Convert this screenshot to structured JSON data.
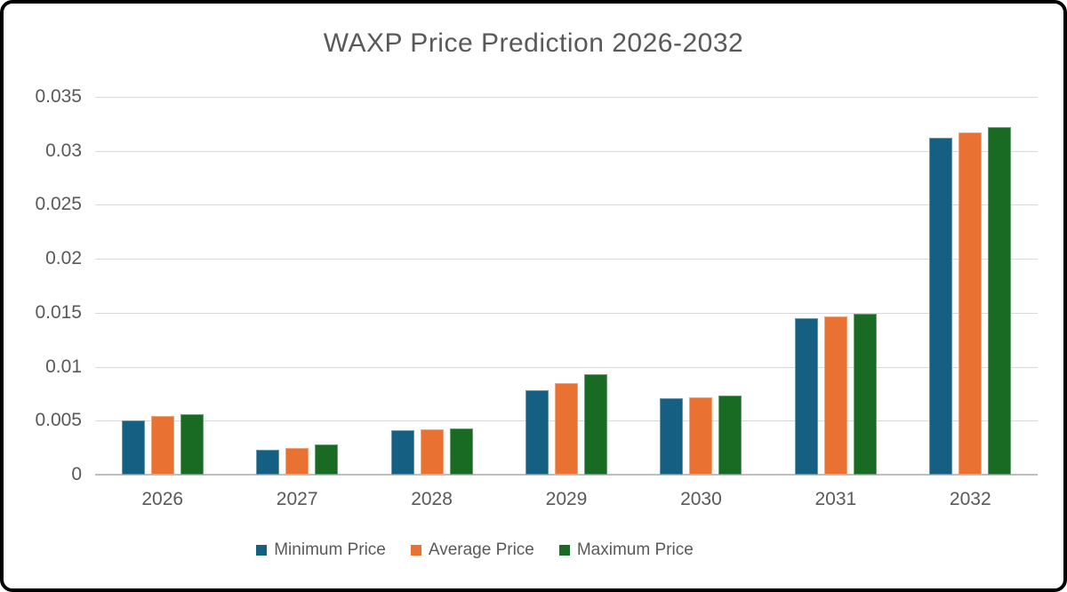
{
  "chart_data": {
    "type": "bar",
    "title": "WAXP Price Prediction 2026-2032",
    "categories": [
      "2026",
      "2027",
      "2028",
      "2029",
      "2030",
      "2031",
      "2032"
    ],
    "series": [
      {
        "name": "Minimum Price",
        "color": "#156082",
        "values": [
          0.005,
          0.0023,
          0.0041,
          0.0078,
          0.0071,
          0.0145,
          0.0312
        ]
      },
      {
        "name": "Average Price",
        "color": "#E97132",
        "values": [
          0.0054,
          0.0025,
          0.0042,
          0.0085,
          0.0072,
          0.0147,
          0.0317
        ]
      },
      {
        "name": "Maximum Price",
        "color": "#196B24",
        "values": [
          0.0056,
          0.0028,
          0.0043,
          0.0093,
          0.0073,
          0.0149,
          0.0322
        ]
      }
    ],
    "xlabel": "",
    "ylabel": "",
    "ylim": [
      0,
      0.035
    ],
    "ytick_values": [
      0,
      0.005,
      0.01,
      0.015,
      0.02,
      0.025,
      0.03,
      0.035
    ],
    "ytick_labels": [
      "0",
      "0.005",
      "0.01",
      "0.015",
      "0.02",
      "0.025",
      "0.03",
      "0.035"
    ],
    "grid": true,
    "legend_position": "bottom",
    "text_color": "#595959",
    "gridline_color": "#D9D9D9",
    "axis_line_color": "#BFBFBF"
  }
}
